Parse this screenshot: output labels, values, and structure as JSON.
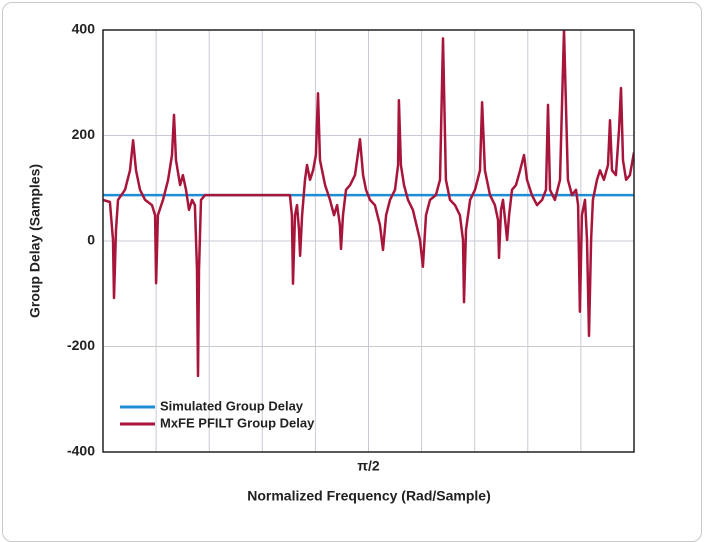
{
  "chart_data": {
    "type": "line",
    "x_label": "Normalized Frequency (Rad/Sample)",
    "y_label": "Group Delay (Samples)",
    "xlim": [
      0,
      3.142
    ],
    "ylim": [
      -400,
      400
    ],
    "xticks": [
      {
        "value": 1.571,
        "label": "π/2"
      }
    ],
    "yticks": [
      -400,
      -200,
      0,
      200,
      400
    ],
    "grid": true,
    "legend": "lower left",
    "series": [
      {
        "name": "Simulated Group Delay",
        "color": "#1f8dd6",
        "x": [
          0,
          3.142
        ],
        "values": [
          87,
          87
        ]
      },
      {
        "name": "MxFE PFILT Group Delay",
        "color": "#a8153a",
        "x": [
          0,
          0.041,
          0.059,
          0.065,
          0.077,
          0.089,
          0.13,
          0.16,
          0.178,
          0.195,
          0.219,
          0.249,
          0.29,
          0.308,
          0.314,
          0.325,
          0.355,
          0.385,
          0.408,
          0.42,
          0.432,
          0.456,
          0.473,
          0.491,
          0.509,
          0.527,
          0.544,
          0.556,
          0.562,
          0.568,
          0.58,
          0.604,
          1.106,
          1.118,
          1.124,
          1.136,
          1.148,
          1.16,
          1.166,
          1.178,
          1.195,
          1.207,
          1.225,
          1.243,
          1.26,
          1.272,
          1.284,
          1.314,
          1.343,
          1.367,
          1.385,
          1.402,
          1.408,
          1.42,
          1.438,
          1.462,
          1.491,
          1.521,
          1.539,
          1.556,
          1.58,
          1.609,
          1.639,
          1.657,
          1.675,
          1.698,
          1.728,
          1.746,
          1.751,
          1.763,
          1.781,
          1.805,
          1.834,
          1.876,
          1.893,
          1.911,
          1.935,
          1.97,
          1.994,
          2.012,
          2.029,
          2.053,
          2.083,
          2.112,
          2.13,
          2.136,
          2.148,
          2.172,
          2.201,
          2.231,
          2.243,
          2.26,
          2.29,
          2.319,
          2.337,
          2.343,
          2.355,
          2.367,
          2.379,
          2.391,
          2.403,
          2.42,
          2.444,
          2.468,
          2.491,
          2.509,
          2.538,
          2.568,
          2.598,
          2.621,
          2.633,
          2.645,
          2.674,
          2.704,
          2.728,
          2.751,
          2.775,
          2.799,
          2.811,
          2.822,
          2.834,
          2.852,
          2.864,
          2.876,
          2.888,
          2.899,
          2.923,
          2.941,
          2.964,
          2.988,
          3.0,
          3.012,
          3.035,
          3.053,
          3.065,
          3.077,
          3.095,
          3.118,
          3.142
        ],
        "values": [
          78,
          74,
          2,
          -108,
          21,
          78,
          97,
          134,
          191,
          134,
          97,
          78,
          68,
          49,
          -80,
          49,
          78,
          116,
          163,
          239,
          153,
          106,
          125,
          97,
          59,
          78,
          68,
          -55,
          -256,
          -55,
          78,
          87,
          87,
          49,
          -81,
          49,
          68,
          21,
          -28,
          49,
          116,
          144,
          116,
          134,
          163,
          280,
          153,
          106,
          78,
          49,
          68,
          30,
          -15,
          49,
          97,
          106,
          125,
          193,
          125,
          97,
          78,
          68,
          30,
          -17,
          49,
          78,
          97,
          144,
          267,
          144,
          106,
          78,
          59,
          2,
          -49,
          49,
          78,
          87,
          116,
          384,
          116,
          78,
          68,
          49,
          2,
          -116,
          21,
          78,
          97,
          134,
          263,
          134,
          87,
          68,
          40,
          -32,
          59,
          78,
          40,
          2,
          49,
          97,
          106,
          134,
          163,
          116,
          87,
          68,
          78,
          97,
          258,
          97,
          78,
          116,
          400,
          116,
          87,
          97,
          68,
          -134,
          49,
          78,
          2,
          -180,
          2,
          78,
          116,
          134,
          116,
          144,
          229,
          134,
          125,
          210,
          290,
          153,
          116,
          125,
          168
        ]
      }
    ]
  }
}
